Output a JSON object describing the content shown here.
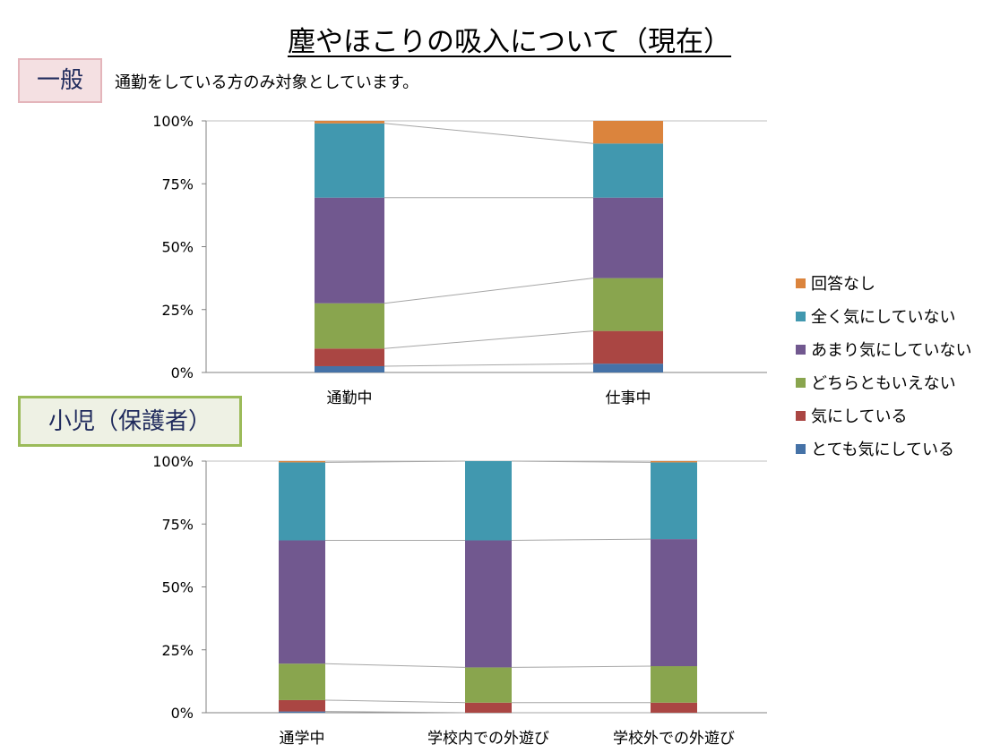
{
  "title": "塵やほこりの吸入について（現在）",
  "general": {
    "tag": "一般",
    "note": "通勤をしている方のみ対象としています。"
  },
  "child": {
    "tag": "小児（保護者）"
  },
  "colors": {
    "とても気にしている": "#4572a7",
    "気にしている": "#aa4643",
    "どちらともいえない": "#89a54e",
    "あまり気にしていない": "#71588f",
    "全く気にしていない": "#4198af",
    "回答なし": "#db843d"
  },
  "chart_data": [
    {
      "type": "bar",
      "stacked": true,
      "categories": [
        "通勤中",
        "仕事中"
      ],
      "ylim": [
        0,
        100
      ],
      "yticks": [
        "0%",
        "25%",
        "50%",
        "75%",
        "100%"
      ],
      "legend_position": "right",
      "series": [
        {
          "name": "とても気にしている",
          "values": [
            2.5,
            3.5
          ]
        },
        {
          "name": "気にしている",
          "values": [
            7,
            13
          ]
        },
        {
          "name": "どちらともいえない",
          "values": [
            18,
            21
          ]
        },
        {
          "name": "あまり気にしていない",
          "values": [
            42,
            32
          ]
        },
        {
          "name": "全く気にしていない",
          "values": [
            29.5,
            21.5
          ]
        },
        {
          "name": "回答なし",
          "values": [
            1,
            9
          ]
        }
      ]
    },
    {
      "type": "bar",
      "stacked": true,
      "categories": [
        "通学中",
        "学校内での外遊び",
        "学校外での外遊び"
      ],
      "ylim": [
        0,
        100
      ],
      "yticks": [
        "0%",
        "25%",
        "50%",
        "75%",
        "100%"
      ],
      "series": [
        {
          "name": "とても気にしている",
          "values": [
            0.5,
            0,
            0
          ]
        },
        {
          "name": "気にしている",
          "values": [
            4.5,
            4,
            4
          ]
        },
        {
          "name": "どちらともいえない",
          "values": [
            14.5,
            14,
            14.5
          ]
        },
        {
          "name": "あまり気にしていない",
          "values": [
            49,
            50.5,
            50.5
          ]
        },
        {
          "name": "全く気にしていない",
          "values": [
            31,
            31.5,
            30.5
          ]
        },
        {
          "name": "回答なし",
          "values": [
            0.5,
            0,
            0.5
          ]
        }
      ]
    }
  ]
}
